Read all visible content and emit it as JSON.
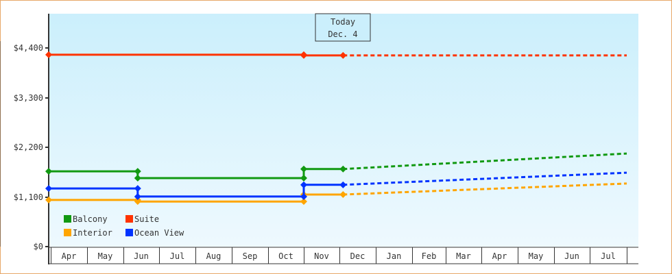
{
  "chart_data": {
    "type": "line",
    "title": "",
    "xlabel": "",
    "ylabel": "",
    "ylim": [
      0,
      5000
    ],
    "yticks": [
      {
        "value": 0,
        "label": "$0"
      },
      {
        "value": 1100,
        "label": "$1,100"
      },
      {
        "value": 2200,
        "label": "$2,200"
      },
      {
        "value": 3300,
        "label": "$3,300"
      },
      {
        "value": 4400,
        "label": "$4,400"
      }
    ],
    "months": [
      "Apr",
      "May",
      "Jun",
      "Jul",
      "Aug",
      "Sep",
      "Oct",
      "Nov",
      "Dec",
      "Jan",
      "Feb",
      "Mar",
      "Apr",
      "May",
      "Jun",
      "Jul"
    ],
    "today_marker": {
      "line1": "Today",
      "line2": "Dec. 4",
      "month_position": 8.1
    },
    "grid": false,
    "legend_position": "bottom-left inside",
    "series": [
      {
        "name": "Balcony",
        "color": "#119911",
        "historical": [
          {
            "month_pos": 0.0,
            "value": 1670
          },
          {
            "month_pos": 2.4,
            "value": 1670
          },
          {
            "month_pos": 2.4,
            "value": 1520
          },
          {
            "month_pos": 7.0,
            "value": 1520
          },
          {
            "month_pos": 7.0,
            "value": 1720
          },
          {
            "month_pos": 8.1,
            "value": 1720
          }
        ],
        "projected": [
          {
            "month_pos": 8.1,
            "value": 1720
          },
          {
            "month_pos": 16.0,
            "value": 2065
          }
        ]
      },
      {
        "name": "Suite",
        "color": "#ff3300",
        "historical": [
          {
            "month_pos": 0.0,
            "value": 4255
          },
          {
            "month_pos": 7.0,
            "value": 4255
          },
          {
            "month_pos": 7.0,
            "value": 4240
          },
          {
            "month_pos": 8.1,
            "value": 4240
          }
        ],
        "projected": [
          {
            "month_pos": 8.1,
            "value": 4240
          },
          {
            "month_pos": 16.0,
            "value": 4240
          }
        ]
      },
      {
        "name": "Interior",
        "color": "#ffa500",
        "historical": [
          {
            "month_pos": 0.0,
            "value": 1035
          },
          {
            "month_pos": 2.4,
            "value": 1035
          },
          {
            "month_pos": 2.4,
            "value": 1000
          },
          {
            "month_pos": 7.0,
            "value": 1000
          },
          {
            "month_pos": 7.0,
            "value": 1155
          },
          {
            "month_pos": 8.1,
            "value": 1155
          }
        ],
        "projected": [
          {
            "month_pos": 8.1,
            "value": 1155
          },
          {
            "month_pos": 16.0,
            "value": 1400
          }
        ]
      },
      {
        "name": "Ocean View",
        "color": "#0033ff",
        "historical": [
          {
            "month_pos": 0.0,
            "value": 1290
          },
          {
            "month_pos": 2.4,
            "value": 1290
          },
          {
            "month_pos": 2.4,
            "value": 1110
          },
          {
            "month_pos": 7.0,
            "value": 1110
          },
          {
            "month_pos": 7.0,
            "value": 1370
          },
          {
            "month_pos": 8.1,
            "value": 1370
          }
        ],
        "projected": [
          {
            "month_pos": 8.1,
            "value": 1370
          },
          {
            "month_pos": 16.0,
            "value": 1640
          }
        ]
      }
    ]
  },
  "legend": [
    {
      "label": "Balcony",
      "color": "#119911"
    },
    {
      "label": "Suite",
      "color": "#ff3300"
    },
    {
      "label": "Interior",
      "color": "#ffa500"
    },
    {
      "label": "Ocean View",
      "color": "#0033ff"
    }
  ],
  "colors": {
    "frame_border": "#e8a868",
    "plot_bg_top": "#cbeffc",
    "plot_bg_bottom": "#eef9fe",
    "axis": "#333333"
  }
}
